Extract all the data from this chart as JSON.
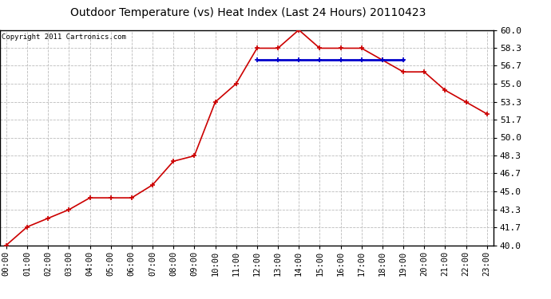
{
  "title": "Outdoor Temperature (vs) Heat Index (Last 24 Hours) 20110423",
  "copyright_text": "Copyright 2011 Cartronics.com",
  "x_labels": [
    "00:00",
    "01:00",
    "02:00",
    "03:00",
    "04:00",
    "05:00",
    "06:00",
    "07:00",
    "08:00",
    "09:00",
    "10:00",
    "11:00",
    "12:00",
    "13:00",
    "14:00",
    "15:00",
    "16:00",
    "17:00",
    "18:00",
    "19:00",
    "20:00",
    "21:00",
    "22:00",
    "23:00"
  ],
  "temp_data": [
    40.0,
    41.7,
    42.5,
    43.3,
    44.4,
    44.4,
    44.4,
    45.6,
    47.8,
    48.3,
    53.3,
    55.0,
    58.3,
    58.3,
    60.0,
    58.3,
    58.3,
    58.3,
    57.2,
    56.1,
    56.1,
    54.4,
    53.3,
    52.2
  ],
  "heat_index_data": [
    null,
    null,
    null,
    null,
    null,
    null,
    null,
    null,
    null,
    null,
    null,
    null,
    57.2,
    57.2,
    57.2,
    57.2,
    57.2,
    57.2,
    57.2,
    57.2,
    null,
    null,
    null,
    null
  ],
  "ylim_min": 40.0,
  "ylim_max": 60.0,
  "ytick_values": [
    40.0,
    41.7,
    43.3,
    45.0,
    46.7,
    48.3,
    50.0,
    51.7,
    53.3,
    55.0,
    56.7,
    58.3,
    60.0
  ],
  "temp_color": "#cc0000",
  "heat_index_color": "#0000cc",
  "background_color": "#ffffff",
  "plot_bg_color": "#ffffff",
  "grid_color": "#bbbbbb",
  "title_fontsize": 10,
  "copyright_fontsize": 6.5,
  "tick_fontsize": 7.5,
  "ytick_fontsize": 8
}
